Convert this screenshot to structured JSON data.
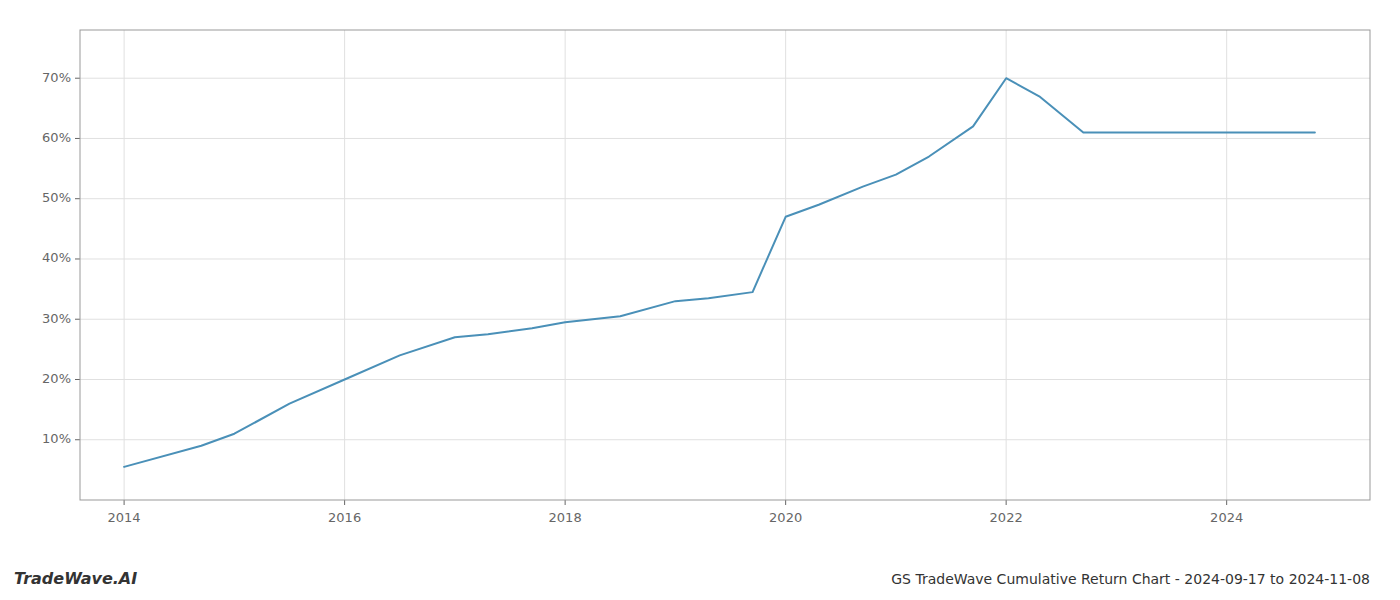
{
  "chart_data": {
    "type": "line",
    "title": "GS TradeWave Cumulative Return Chart - 2024-09-17 to 2024-11-08",
    "annotations": [
      "TradeWave.AI"
    ],
    "color": "#4a90b8",
    "x": [
      2014.0,
      2014.7,
      2015.0,
      2015.5,
      2016.0,
      2016.5,
      2017.0,
      2017.3,
      2017.7,
      2018.0,
      2018.5,
      2019.0,
      2019.3,
      2019.7,
      2020.0,
      2020.3,
      2020.7,
      2021.0,
      2021.3,
      2021.7,
      2022.0,
      2022.3,
      2022.7,
      2023.0,
      2023.5,
      2024.0,
      2024.8
    ],
    "values": [
      5.5,
      9,
      11,
      16,
      20,
      24,
      27,
      27.5,
      28.5,
      29.5,
      30.5,
      33,
      33.5,
      34.5,
      47,
      49,
      52,
      54,
      57,
      62,
      70,
      67,
      61,
      61,
      61,
      61,
      61
    ],
    "xlim": [
      2013.6,
      2025.3
    ],
    "ylim": [
      0,
      78
    ],
    "xticks": [
      2014,
      2016,
      2018,
      2020,
      2022,
      2024
    ],
    "yticks": [
      {
        "value": 10,
        "label": "10%"
      },
      {
        "value": 20,
        "label": "20%"
      },
      {
        "value": 30,
        "label": "30%"
      },
      {
        "value": 40,
        "label": "40%"
      },
      {
        "value": 50,
        "label": "50%"
      },
      {
        "value": 60,
        "label": "60%"
      },
      {
        "value": 70,
        "label": "70%"
      }
    ],
    "grid": true
  }
}
